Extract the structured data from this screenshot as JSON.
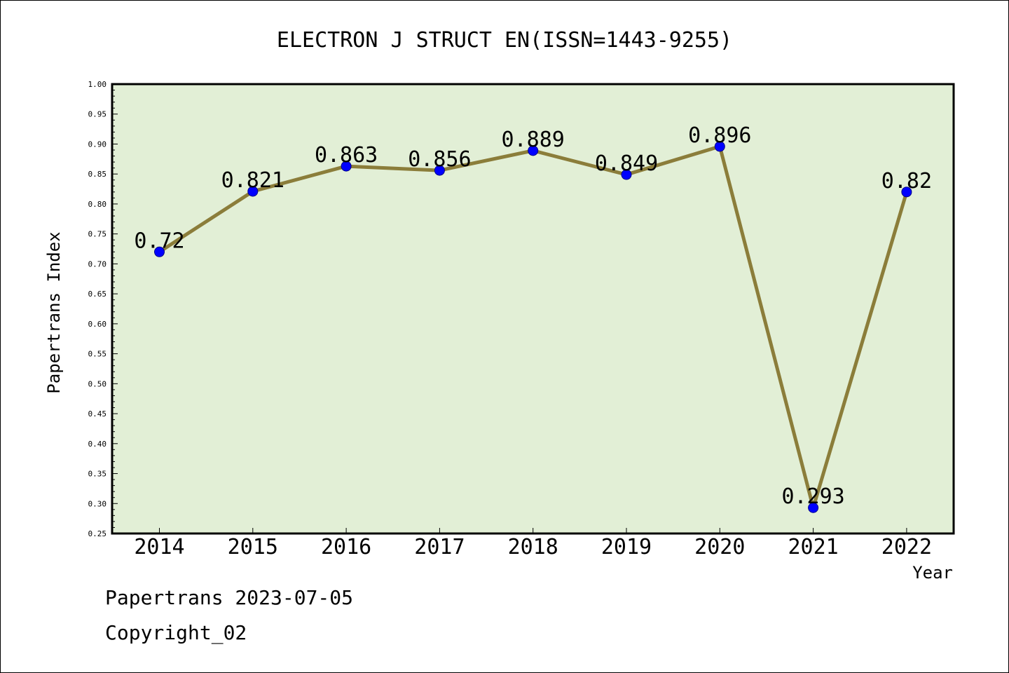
{
  "chart_data": {
    "type": "line",
    "title": "ELECTRON J STRUCT EN(ISSN=1443-9255)",
    "xlabel": "Year",
    "ylabel": "Papertrans Index",
    "categories": [
      "2014",
      "2015",
      "2016",
      "2017",
      "2018",
      "2019",
      "2020",
      "2021",
      "2022"
    ],
    "values": [
      0.72,
      0.821,
      0.863,
      0.856,
      0.889,
      0.849,
      0.896,
      0.293,
      0.82
    ],
    "data_labels": [
      "0.72",
      "0.821",
      "0.863",
      "0.856",
      "0.889",
      "0.849",
      "0.896",
      "0.293",
      "0.82"
    ],
    "ylim": [
      0.25,
      1.0
    ],
    "yticks": [
      "0.25",
      "0.30",
      "0.35",
      "0.40",
      "0.45",
      "0.50",
      "0.55",
      "0.60",
      "0.65",
      "0.70",
      "0.75",
      "0.80",
      "0.85",
      "0.90",
      "0.95",
      "1.00"
    ],
    "grid": false,
    "colors": {
      "plot_background": "#e2efd6",
      "line": "#8b7d3a",
      "marker": "#0000ff"
    }
  },
  "footer": {
    "line1": "Papertrans 2023-07-05",
    "line2": "Copyright_02"
  }
}
